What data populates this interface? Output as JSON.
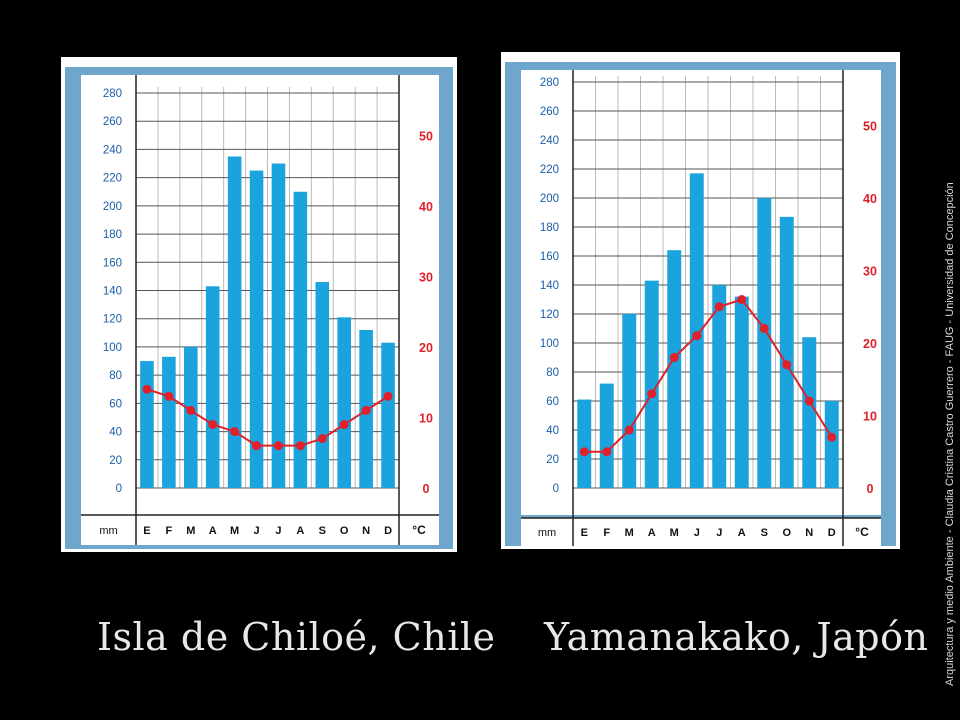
{
  "captions": {
    "left": "Isla de Chiloé, Chile",
    "right": "Yamanakako, Japón"
  },
  "side_credit": "Arquitectura y medio Ambiente  -  Claudia Cristina Castro Guerrero  -  FAUG - Universidad de Concepción",
  "colors": {
    "background": "#000000",
    "frame": "#6fa6cc",
    "bar": "#1aa3dd",
    "temperature_line": "#e0202a",
    "temperature_axis": "#e0202a",
    "grid": "#555555"
  },
  "chart_data": [
    {
      "type": "bar",
      "panel": "left",
      "categories": [
        "E",
        "F",
        "M",
        "A",
        "M",
        "J",
        "J",
        "A",
        "S",
        "O",
        "N",
        "D"
      ],
      "series": [
        {
          "values": [
            90,
            93,
            100,
            143,
            235,
            225,
            230,
            210,
            146,
            121,
            112,
            103
          ]
        },
        {
          "type": "line",
          "axis": "right",
          "values": [
            14,
            13,
            11,
            9,
            8,
            6,
            6,
            6,
            7,
            9,
            11,
            13
          ]
        }
      ],
      "xlabel": "mm",
      "y2label": "°C",
      "ylim": [
        0,
        280
      ],
      "yticks": [
        "280",
        "260",
        "240",
        "220",
        "200",
        "180",
        "160",
        "140",
        "120",
        "100",
        "80",
        "60",
        "40",
        "20",
        "0"
      ],
      "y2lim": [
        0,
        56
      ],
      "y2ticks": [
        "50",
        "40",
        "30",
        "20",
        "10",
        "0"
      ],
      "grid": true
    },
    {
      "type": "bar",
      "panel": "right",
      "categories": [
        "E",
        "F",
        "M",
        "A",
        "M",
        "J",
        "J",
        "A",
        "S",
        "O",
        "N",
        "D"
      ],
      "series": [
        {
          "values": [
            61,
            72,
            120,
            143,
            164,
            217,
            140,
            132,
            200,
            187,
            104,
            60
          ]
        },
        {
          "type": "line",
          "axis": "right",
          "values": [
            5,
            5,
            8,
            13,
            18,
            21,
            25,
            26,
            22,
            17,
            12,
            7
          ]
        }
      ],
      "xlabel": "mm",
      "y2label": "°C",
      "ylim": [
        0,
        280
      ],
      "yticks": [
        "280",
        "260",
        "240",
        "220",
        "200",
        "180",
        "160",
        "140",
        "120",
        "100",
        "80",
        "60",
        "40",
        "20",
        "0"
      ],
      "y2lim": [
        0,
        56
      ],
      "y2ticks": [
        "50",
        "40",
        "30",
        "20",
        "10",
        "0"
      ],
      "grid": true
    }
  ]
}
